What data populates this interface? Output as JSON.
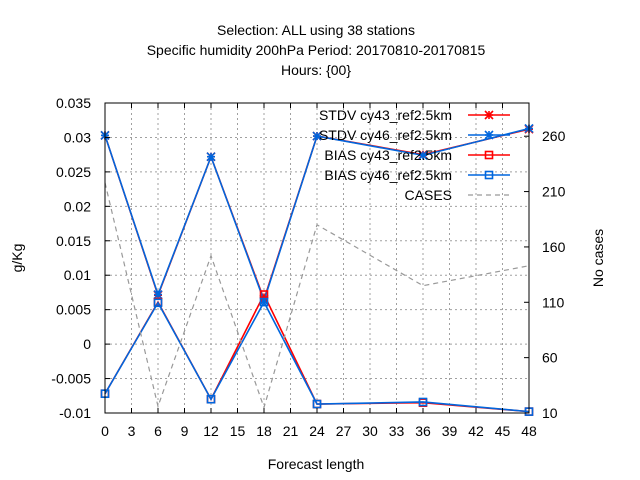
{
  "chart_data": {
    "type": "line",
    "title_lines": [
      "Selection: ALL using    38 stations",
      "Specific humidity 200hPa   Period: 20170810-20170815",
      "Hours: {00}"
    ],
    "xlabel": "Forecast length",
    "ylabel": "g/Kg",
    "y2label": "No cases",
    "xlim": [
      0,
      48
    ],
    "ylim": [
      -0.01,
      0.035
    ],
    "y2lim": [
      10,
      290
    ],
    "x_ticks": [
      0,
      3,
      6,
      9,
      12,
      15,
      18,
      21,
      24,
      27,
      30,
      33,
      36,
      39,
      42,
      45,
      48
    ],
    "y_ticks": [
      -0.01,
      -0.005,
      0,
      0.005,
      0.01,
      0.015,
      0.02,
      0.025,
      0.03,
      0.035
    ],
    "y_tick_labels": [
      "-0.01",
      "-0.005",
      "0",
      "0.005",
      "0.01",
      "0.015",
      "0.02",
      "0.025",
      "0.03",
      "0.035"
    ],
    "y2_ticks": [
      10,
      60,
      110,
      160,
      210,
      260
    ],
    "y2_tick_labels": [
      "10",
      "60",
      "110",
      "160",
      "210",
      "260"
    ],
    "grid": true,
    "legend_position": "top-right",
    "x": [
      0,
      6,
      12,
      18,
      24,
      36,
      48
    ],
    "series": [
      {
        "name": "STDV cy43_ref2.5km",
        "axis": "y1",
        "marker": "star",
        "color": "#ff0000",
        "values": [
          0.0303,
          0.0071,
          0.0272,
          0.0065,
          0.0302,
          0.0275,
          0.0312
        ]
      },
      {
        "name": "STDV cy46_ref2.5km",
        "axis": "y1",
        "marker": "star",
        "color": "#0066dd",
        "values": [
          0.0303,
          0.0072,
          0.0272,
          0.0063,
          0.0302,
          0.0274,
          0.0313
        ]
      },
      {
        "name": "BIAS cy43_ref2.5km",
        "axis": "y1",
        "marker": "square",
        "color": "#ff0000",
        "values": [
          -0.0072,
          0.0061,
          -0.008,
          0.0072,
          -0.0087,
          -0.0085,
          -0.0098
        ]
      },
      {
        "name": "BIAS cy46_ref2.5km",
        "axis": "y1",
        "marker": "square",
        "color": "#0066dd",
        "values": [
          -0.0072,
          0.006,
          -0.008,
          0.0061,
          -0.0087,
          -0.0084,
          -0.0098
        ]
      },
      {
        "name": "CASES",
        "axis": "y2",
        "marker": "none",
        "color": "#999999",
        "dashed": true,
        "values": [
          218,
          16,
          152,
          15,
          180,
          125,
          143
        ]
      }
    ]
  }
}
